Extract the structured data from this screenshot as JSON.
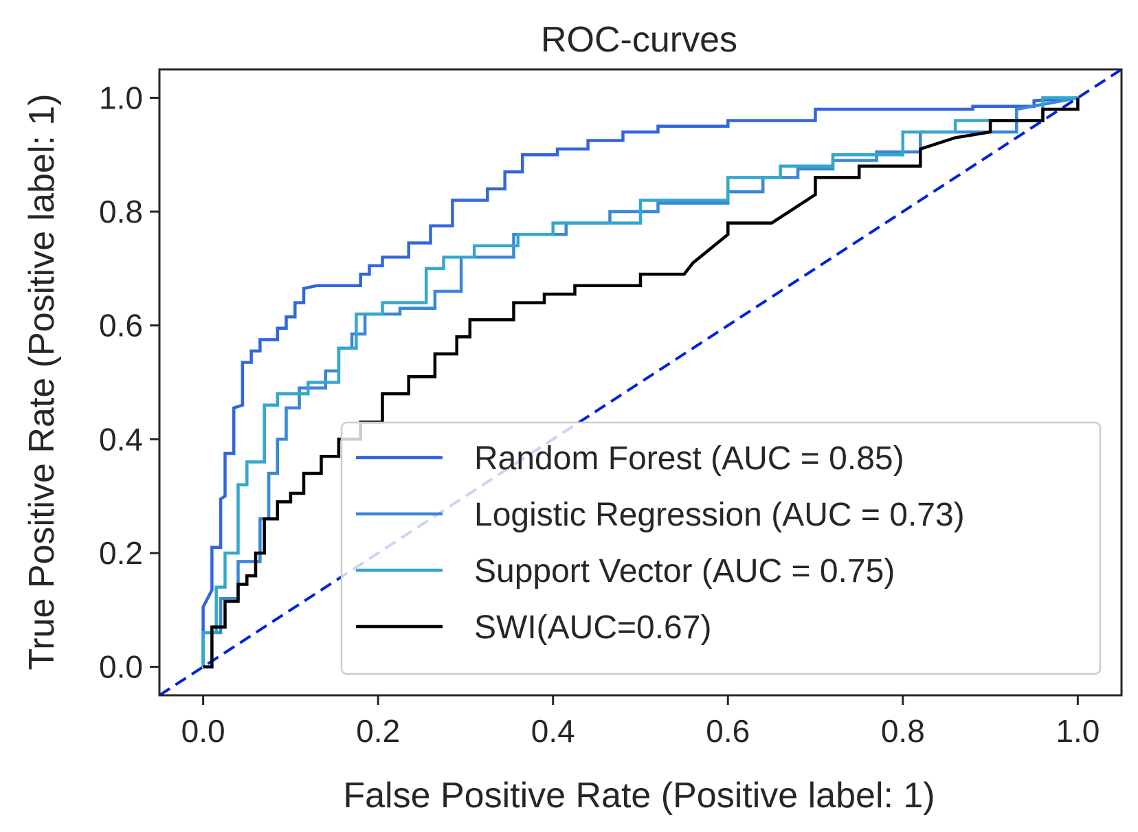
{
  "chart_data": {
    "type": "line",
    "title": "ROC-curves",
    "xlabel": "False Positive Rate (Positive label: 1)",
    "ylabel": "True Positive Rate (Positive label: 1)",
    "xlim": [
      -0.05,
      1.05
    ],
    "ylim": [
      -0.05,
      1.05
    ],
    "xticks": [
      0.0,
      0.2,
      0.4,
      0.6,
      0.8,
      1.0
    ],
    "yticks": [
      0.0,
      0.2,
      0.4,
      0.6,
      0.8,
      1.0
    ],
    "xtick_labels": [
      "0.0",
      "0.2",
      "0.4",
      "0.6",
      "0.8",
      "1.0"
    ],
    "ytick_labels": [
      "0.0",
      "0.2",
      "0.4",
      "0.6",
      "0.8",
      "1.0"
    ],
    "grid": false,
    "legend_position": "lower-right",
    "chance_line": {
      "x": [
        -0.05,
        1.05
      ],
      "y": [
        -0.05,
        1.05
      ],
      "color": "#0022dd",
      "style": "dashed"
    },
    "series": [
      {
        "name": "Random Forest (AUC = 0.85)",
        "color": "#3366dd",
        "x": [
          0.0,
          0.0,
          0.01,
          0.01,
          0.02,
          0.02,
          0.025,
          0.025,
          0.035,
          0.035,
          0.045,
          0.045,
          0.055,
          0.055,
          0.065,
          0.065,
          0.085,
          0.085,
          0.095,
          0.095,
          0.105,
          0.105,
          0.115,
          0.115,
          0.13,
          0.13,
          0.18,
          0.18,
          0.19,
          0.19,
          0.205,
          0.205,
          0.235,
          0.235,
          0.26,
          0.26,
          0.285,
          0.285,
          0.325,
          0.325,
          0.345,
          0.345,
          0.365,
          0.365,
          0.405,
          0.405,
          0.44,
          0.44,
          0.48,
          0.48,
          0.52,
          0.52,
          0.6,
          0.6,
          0.7,
          0.7,
          0.88,
          0.88,
          0.95,
          0.95,
          1.0
        ],
        "y": [
          0.0,
          0.105,
          0.135,
          0.21,
          0.21,
          0.295,
          0.3,
          0.375,
          0.375,
          0.455,
          0.46,
          0.535,
          0.535,
          0.555,
          0.555,
          0.575,
          0.575,
          0.595,
          0.595,
          0.615,
          0.615,
          0.64,
          0.64,
          0.665,
          0.67,
          0.67,
          0.67,
          0.69,
          0.69,
          0.705,
          0.705,
          0.72,
          0.72,
          0.745,
          0.745,
          0.775,
          0.775,
          0.82,
          0.82,
          0.84,
          0.84,
          0.87,
          0.87,
          0.9,
          0.9,
          0.91,
          0.91,
          0.925,
          0.925,
          0.94,
          0.94,
          0.95,
          0.95,
          0.96,
          0.96,
          0.98,
          0.98,
          0.985,
          0.985,
          0.995,
          1.0
        ]
      },
      {
        "name": "Logistic Regression (AUC = 0.73)",
        "color": "#3a87d4",
        "x": [
          0.0,
          0.0,
          0.02,
          0.02,
          0.04,
          0.04,
          0.065,
          0.065,
          0.075,
          0.075,
          0.085,
          0.085,
          0.095,
          0.095,
          0.11,
          0.11,
          0.14,
          0.14,
          0.155,
          0.155,
          0.17,
          0.17,
          0.185,
          0.185,
          0.225,
          0.225,
          0.265,
          0.265,
          0.295,
          0.295,
          0.355,
          0.355,
          0.415,
          0.415,
          0.465,
          0.465,
          0.52,
          0.52,
          0.6,
          0.6,
          0.64,
          0.64,
          0.68,
          0.68,
          0.72,
          0.72,
          0.77,
          0.77,
          0.82,
          0.82,
          0.93,
          0.93,
          1.0
        ],
        "y": [
          0.0,
          0.06,
          0.06,
          0.12,
          0.12,
          0.185,
          0.185,
          0.26,
          0.26,
          0.34,
          0.34,
          0.4,
          0.4,
          0.455,
          0.455,
          0.49,
          0.49,
          0.52,
          0.52,
          0.56,
          0.56,
          0.585,
          0.585,
          0.62,
          0.62,
          0.63,
          0.63,
          0.66,
          0.66,
          0.72,
          0.72,
          0.76,
          0.76,
          0.78,
          0.78,
          0.8,
          0.8,
          0.815,
          0.815,
          0.835,
          0.835,
          0.86,
          0.86,
          0.875,
          0.875,
          0.89,
          0.89,
          0.905,
          0.905,
          0.94,
          0.94,
          0.98,
          1.0
        ]
      },
      {
        "name": "Support Vector (AUC = 0.75)",
        "color": "#34a8cc",
        "x": [
          0.0,
          0.0,
          0.015,
          0.015,
          0.025,
          0.025,
          0.04,
          0.04,
          0.05,
          0.05,
          0.07,
          0.07,
          0.085,
          0.085,
          0.12,
          0.12,
          0.155,
          0.155,
          0.175,
          0.175,
          0.205,
          0.205,
          0.255,
          0.255,
          0.275,
          0.275,
          0.31,
          0.31,
          0.36,
          0.36,
          0.4,
          0.4,
          0.5,
          0.5,
          0.6,
          0.6,
          0.66,
          0.66,
          0.72,
          0.72,
          0.8,
          0.8,
          0.86,
          0.86,
          0.96,
          0.96,
          1.0
        ],
        "y": [
          0.0,
          0.06,
          0.06,
          0.14,
          0.14,
          0.2,
          0.2,
          0.32,
          0.32,
          0.36,
          0.36,
          0.46,
          0.46,
          0.48,
          0.48,
          0.5,
          0.5,
          0.56,
          0.56,
          0.62,
          0.62,
          0.64,
          0.64,
          0.7,
          0.7,
          0.72,
          0.72,
          0.74,
          0.74,
          0.76,
          0.76,
          0.78,
          0.78,
          0.82,
          0.82,
          0.86,
          0.86,
          0.88,
          0.88,
          0.9,
          0.9,
          0.94,
          0.94,
          0.96,
          0.96,
          1.0,
          1.0
        ]
      },
      {
        "name": "SWI(AUC=0.67)",
        "color": "#000000",
        "x": [
          0.0,
          0.01,
          0.01,
          0.025,
          0.025,
          0.04,
          0.04,
          0.05,
          0.05,
          0.06,
          0.06,
          0.07,
          0.07,
          0.085,
          0.085,
          0.1,
          0.1,
          0.115,
          0.115,
          0.135,
          0.135,
          0.155,
          0.155,
          0.18,
          0.18,
          0.205,
          0.205,
          0.235,
          0.235,
          0.265,
          0.265,
          0.29,
          0.29,
          0.305,
          0.305,
          0.355,
          0.355,
          0.39,
          0.39,
          0.425,
          0.425,
          0.5,
          0.5,
          0.55,
          0.56,
          0.6,
          0.6,
          0.65,
          0.7,
          0.7,
          0.75,
          0.75,
          0.82,
          0.82,
          0.86,
          0.9,
          0.9,
          0.96,
          0.96,
          1.0,
          1.0
        ],
        "y": [
          0.0,
          0.0,
          0.07,
          0.07,
          0.115,
          0.115,
          0.145,
          0.145,
          0.16,
          0.16,
          0.2,
          0.2,
          0.26,
          0.26,
          0.29,
          0.29,
          0.305,
          0.305,
          0.34,
          0.34,
          0.37,
          0.37,
          0.4,
          0.4,
          0.43,
          0.43,
          0.48,
          0.48,
          0.51,
          0.51,
          0.55,
          0.55,
          0.58,
          0.58,
          0.61,
          0.61,
          0.64,
          0.64,
          0.655,
          0.655,
          0.67,
          0.67,
          0.69,
          0.69,
          0.71,
          0.76,
          0.78,
          0.78,
          0.83,
          0.86,
          0.86,
          0.88,
          0.88,
          0.91,
          0.93,
          0.94,
          0.96,
          0.96,
          0.98,
          0.98,
          1.0
        ]
      }
    ]
  }
}
